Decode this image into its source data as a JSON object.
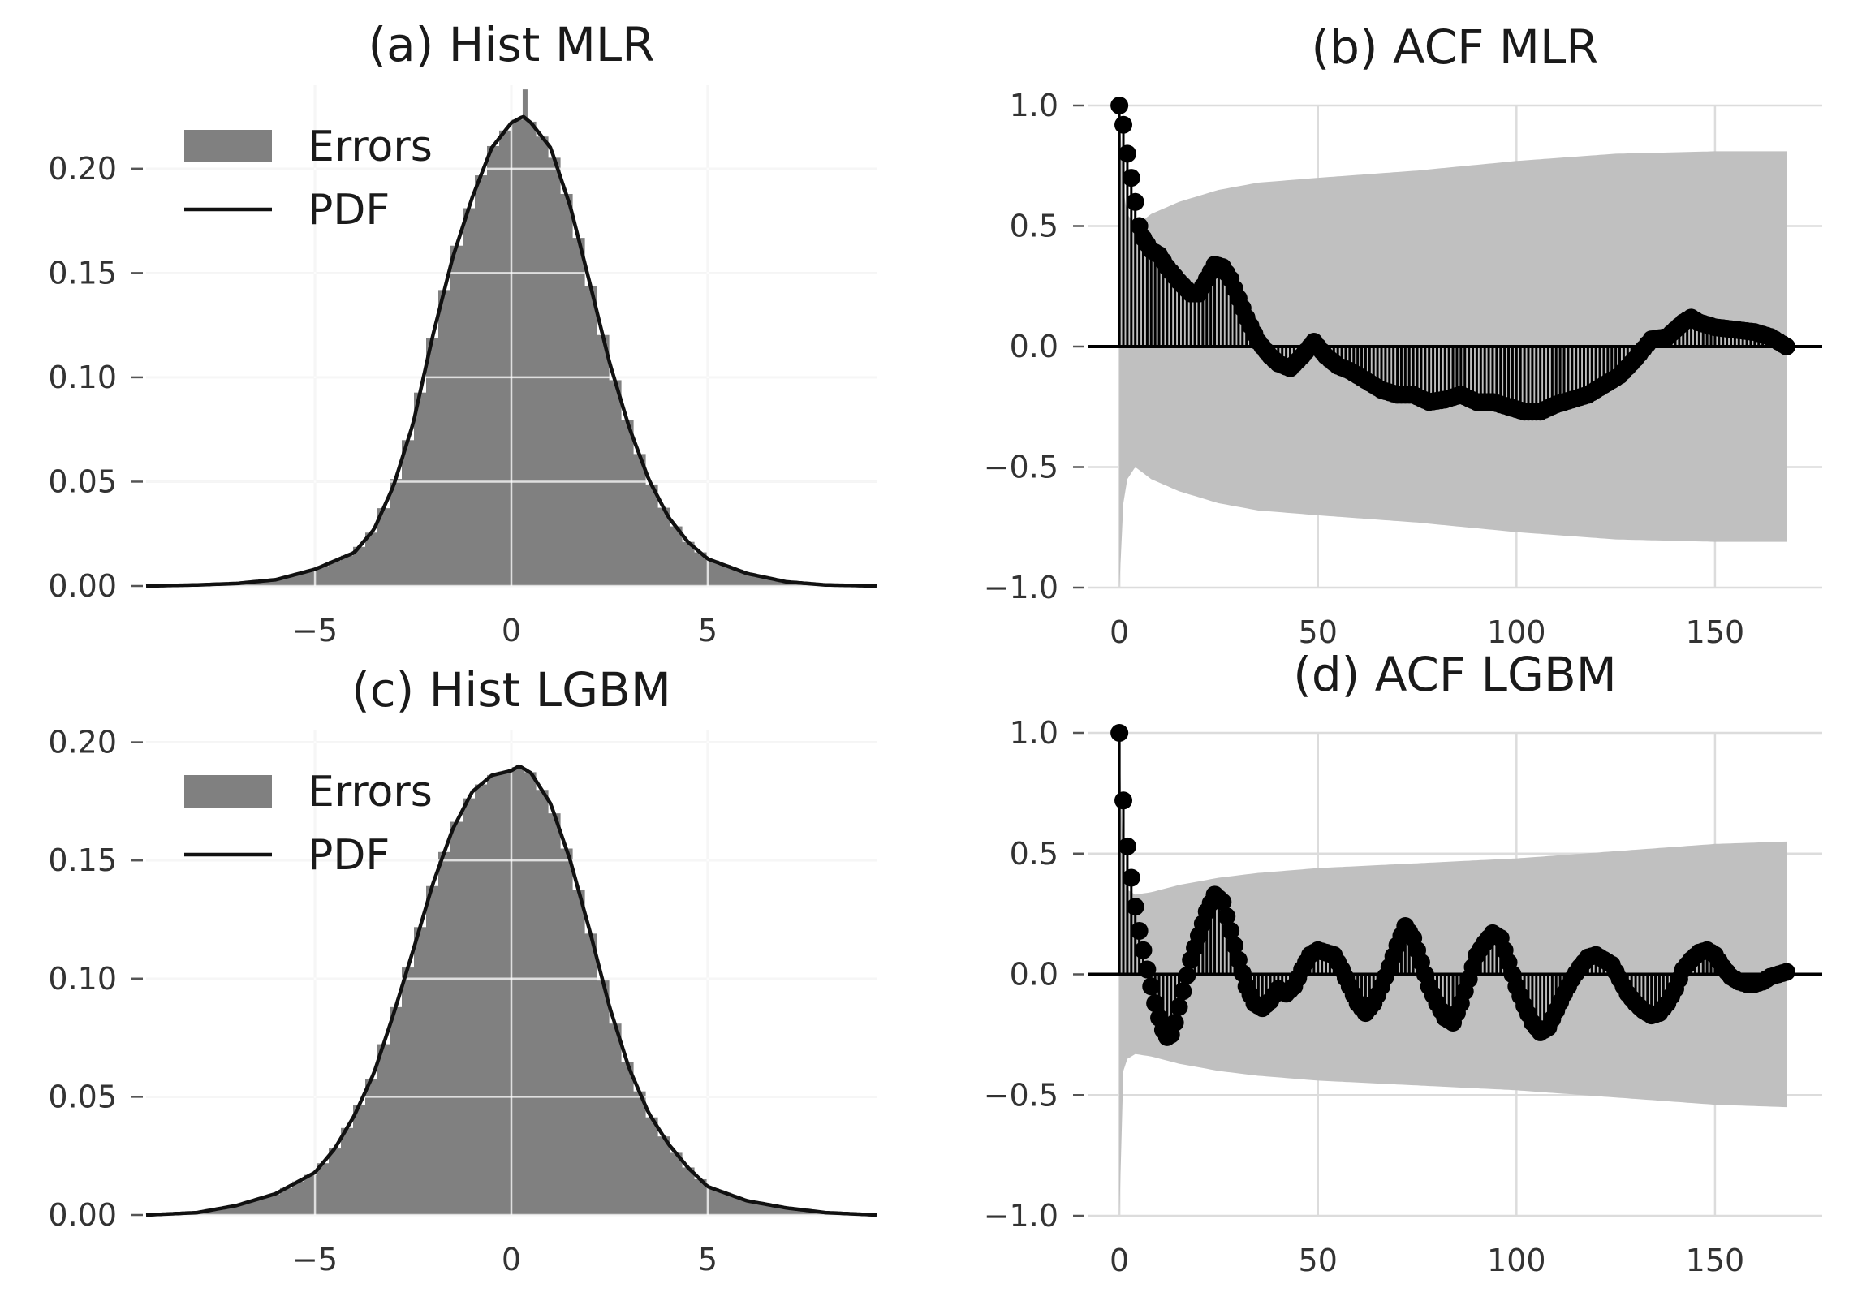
{
  "colors": {
    "hist_fill": "#808080",
    "pdf_line": "#111111",
    "band": "#c0c0c0",
    "marker": "#000000",
    "grid": "#dcdcdc"
  },
  "chart_data": [
    {
      "id": "a",
      "type": "area",
      "title": "(a) Hist MLR",
      "xlim": [
        -9.3,
        9.3
      ],
      "ylim": [
        0,
        0.24
      ],
      "xticks": [
        -5,
        0,
        5
      ],
      "xtick_labels": [
        "−5",
        "0",
        "5"
      ],
      "yticks": [
        0,
        0.05,
        0.1,
        0.15,
        0.2
      ],
      "ytick_labels": [
        "0.00",
        "0.05",
        "0.10",
        "0.15",
        "0.20"
      ],
      "legend": [
        "Errors",
        "PDF"
      ],
      "legend_position": "upper-left",
      "pdf": {
        "x": [
          -9.3,
          -8,
          -7,
          -6,
          -5,
          -4.5,
          -4,
          -3.5,
          -3,
          -2.5,
          -2,
          -1.5,
          -1,
          -0.5,
          0,
          0.3,
          0.5,
          1,
          1.5,
          2,
          2.5,
          3,
          3.5,
          4,
          4.5,
          5,
          6,
          7,
          8,
          9.3
        ],
        "y": [
          0,
          0.0005,
          0.0012,
          0.003,
          0.008,
          0.012,
          0.016,
          0.027,
          0.048,
          0.078,
          0.12,
          0.157,
          0.186,
          0.21,
          0.222,
          0.225,
          0.222,
          0.21,
          0.182,
          0.145,
          0.107,
          0.076,
          0.051,
          0.033,
          0.021,
          0.013,
          0.006,
          0.002,
          0.0005,
          0
        ]
      },
      "hist_spike": {
        "x": 0.35,
        "y": 0.238
      }
    },
    {
      "id": "b",
      "type": "stem",
      "title": "(b) ACF MLR",
      "xlim": [
        -8,
        177
      ],
      "ylim": [
        -1,
        1
      ],
      "xticks": [
        0,
        50,
        100,
        150
      ],
      "xtick_labels": [
        "0",
        "50",
        "100",
        "150"
      ],
      "yticks": [
        -1,
        -0.5,
        0,
        0.5,
        1
      ],
      "ytick_labels": [
        "−1.0",
        "−0.5",
        "0.0",
        "0.5",
        "1.0"
      ],
      "acf_knots": {
        "lag": [
          0,
          1,
          2,
          3,
          4,
          5,
          6,
          8,
          10,
          12,
          15,
          18,
          20,
          22,
          24,
          26,
          28,
          30,
          32,
          35,
          38,
          40,
          43,
          46,
          49,
          52,
          55,
          58,
          62,
          66,
          70,
          74,
          78,
          82,
          86,
          90,
          94,
          98,
          102,
          106,
          110,
          114,
          118,
          122,
          126,
          130,
          134,
          138,
          142,
          144,
          146,
          150,
          155,
          160,
          164,
          168
        ],
        "acf": [
          1.0,
          0.92,
          0.8,
          0.7,
          0.6,
          0.5,
          0.45,
          0.4,
          0.38,
          0.33,
          0.27,
          0.22,
          0.22,
          0.28,
          0.34,
          0.33,
          0.28,
          0.2,
          0.12,
          0.02,
          -0.04,
          -0.07,
          -0.09,
          -0.04,
          0.02,
          -0.04,
          -0.08,
          -0.1,
          -0.14,
          -0.18,
          -0.2,
          -0.2,
          -0.23,
          -0.22,
          -0.2,
          -0.23,
          -0.23,
          -0.25,
          -0.27,
          -0.27,
          -0.24,
          -0.22,
          -0.2,
          -0.16,
          -0.12,
          -0.05,
          0.03,
          0.04,
          0.1,
          0.12,
          0.1,
          0.08,
          0.07,
          0.06,
          0.04,
          0.0
        ]
      },
      "conf_band_knots": {
        "lag": [
          0,
          1,
          2,
          4,
          8,
          15,
          25,
          35,
          50,
          75,
          100,
          125,
          150,
          168
        ],
        "upper": [
          1.0,
          0.65,
          0.55,
          0.5,
          0.55,
          0.6,
          0.65,
          0.68,
          0.7,
          0.73,
          0.77,
          0.8,
          0.81,
          0.81
        ],
        "lower": [
          -1.0,
          -0.65,
          -0.55,
          -0.5,
          -0.55,
          -0.6,
          -0.65,
          -0.68,
          -0.7,
          -0.73,
          -0.77,
          -0.8,
          -0.81,
          -0.81
        ]
      },
      "max_lag": 168
    },
    {
      "id": "c",
      "type": "area",
      "title": "(c) Hist LGBM",
      "xlim": [
        -9.3,
        9.3
      ],
      "ylim": [
        0,
        0.205
      ],
      "xticks": [
        -5,
        0,
        5
      ],
      "xtick_labels": [
        "−5",
        "0",
        "5"
      ],
      "yticks": [
        0,
        0.05,
        0.1,
        0.15,
        0.2
      ],
      "ytick_labels": [
        "0.00",
        "0.05",
        "0.10",
        "0.15",
        "0.20"
      ],
      "legend": [
        "Errors",
        "PDF"
      ],
      "legend_position": "upper-left",
      "pdf": {
        "x": [
          -9.3,
          -8,
          -7,
          -6,
          -5,
          -4.5,
          -4,
          -3.5,
          -3,
          -2.5,
          -2,
          -1.5,
          -1,
          -0.5,
          0,
          0.2,
          0.5,
          1,
          1.5,
          2,
          2.5,
          3,
          3.5,
          4,
          4.5,
          5,
          6,
          7,
          8,
          9.3
        ],
        "y": [
          0,
          0.001,
          0.004,
          0.009,
          0.018,
          0.028,
          0.042,
          0.06,
          0.085,
          0.112,
          0.14,
          0.163,
          0.179,
          0.186,
          0.188,
          0.19,
          0.187,
          0.174,
          0.15,
          0.12,
          0.088,
          0.062,
          0.043,
          0.03,
          0.02,
          0.012,
          0.006,
          0.003,
          0.001,
          0
        ]
      }
    },
    {
      "id": "d",
      "type": "stem",
      "title": "(d) ACF LGBM",
      "xlim": [
        -8,
        177
      ],
      "ylim": [
        -1,
        1
      ],
      "xticks": [
        0,
        50,
        100,
        150
      ],
      "xtick_labels": [
        "0",
        "50",
        "100",
        "150"
      ],
      "yticks": [
        -1,
        -0.5,
        0,
        0.5,
        1
      ],
      "ytick_labels": [
        "−1.0",
        "−0.5",
        "0.0",
        "0.5",
        "1.0"
      ],
      "acf_knots": {
        "lag": [
          0,
          1,
          2,
          3,
          4,
          5,
          6,
          7,
          8,
          9,
          10,
          11,
          12,
          13,
          14,
          16,
          18,
          20,
          22,
          24,
          26,
          28,
          30,
          32,
          34,
          36,
          38,
          40,
          42,
          44,
          46,
          48,
          50,
          52,
          54,
          56,
          58,
          60,
          62,
          64,
          66,
          68,
          70,
          72,
          74,
          76,
          78,
          80,
          82,
          84,
          86,
          88,
          90,
          92,
          94,
          96,
          98,
          100,
          102,
          104,
          106,
          108,
          110,
          112,
          114,
          116,
          118,
          120,
          122,
          124,
          126,
          128,
          130,
          132,
          134,
          136,
          138,
          140,
          142,
          144,
          146,
          148,
          150,
          152,
          154,
          156,
          158,
          160,
          162,
          164,
          166,
          168
        ],
        "acf": [
          1.0,
          0.72,
          0.53,
          0.4,
          0.28,
          0.18,
          0.1,
          0.02,
          -0.05,
          -0.12,
          -0.18,
          -0.23,
          -0.26,
          -0.25,
          -0.2,
          -0.07,
          0.06,
          0.16,
          0.26,
          0.33,
          0.3,
          0.18,
          0.06,
          -0.05,
          -0.12,
          -0.14,
          -0.11,
          -0.06,
          -0.08,
          -0.05,
          0.02,
          0.08,
          0.1,
          0.09,
          0.08,
          0.02,
          -0.05,
          -0.12,
          -0.16,
          -0.12,
          -0.05,
          0.03,
          0.12,
          0.2,
          0.15,
          0.05,
          -0.05,
          -0.12,
          -0.18,
          -0.2,
          -0.12,
          -0.02,
          0.08,
          0.13,
          0.17,
          0.15,
          0.05,
          -0.05,
          -0.13,
          -0.2,
          -0.24,
          -0.22,
          -0.15,
          -0.08,
          -0.02,
          0.03,
          0.07,
          0.08,
          0.06,
          0.04,
          -0.02,
          -0.08,
          -0.12,
          -0.15,
          -0.17,
          -0.16,
          -0.12,
          -0.06,
          0.02,
          0.06,
          0.09,
          0.1,
          0.08,
          0.03,
          -0.01,
          -0.03,
          -0.04,
          -0.04,
          -0.03,
          -0.01,
          0.0,
          0.01
        ]
      },
      "conf_band_knots": {
        "lag": [
          0,
          1,
          2,
          4,
          8,
          15,
          25,
          35,
          50,
          75,
          100,
          125,
          150,
          168
        ],
        "upper": [
          1.0,
          0.4,
          0.35,
          0.33,
          0.34,
          0.37,
          0.4,
          0.42,
          0.44,
          0.46,
          0.48,
          0.51,
          0.54,
          0.55
        ],
        "lower": [
          -1.0,
          -0.4,
          -0.35,
          -0.33,
          -0.34,
          -0.37,
          -0.4,
          -0.42,
          -0.44,
          -0.46,
          -0.48,
          -0.51,
          -0.54,
          -0.55
        ]
      },
      "max_lag": 168
    }
  ]
}
